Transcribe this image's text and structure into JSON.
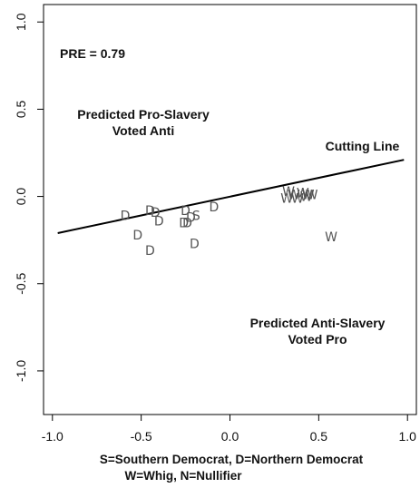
{
  "chart_data": {
    "type": "scatter",
    "xlim": [
      -1.05,
      1.05
    ],
    "ylim": [
      -1.25,
      1.1
    ],
    "x_ticks": [
      {
        "value": -1.0,
        "label": "-1.0"
      },
      {
        "value": -0.5,
        "label": "-0.5"
      },
      {
        "value": 0.0,
        "label": "0.0"
      },
      {
        "value": 0.5,
        "label": "0.5"
      },
      {
        "value": 1.0,
        "label": "1.0"
      }
    ],
    "y_ticks": [
      {
        "value": 1.0,
        "label": "1.0"
      },
      {
        "value": 0.5,
        "label": "0.5"
      },
      {
        "value": 0.0,
        "label": "0.0"
      },
      {
        "value": -0.5,
        "label": "-0.5"
      },
      {
        "value": -1.0,
        "label": "-1.0"
      }
    ],
    "grid": false,
    "xlabel_lines": [
      "S=Southern Democrat, D=Northern Democrat",
      "W=Whig, N=Nullifier"
    ],
    "cutting_line": {
      "label": "Cutting Line",
      "x": [
        -0.97,
        0.98
      ],
      "y": [
        -0.21,
        0.21
      ]
    },
    "annotations": {
      "pre": "PRE =  0.79",
      "pro_slavery": [
        "Predicted Pro-Slavery",
        "Voted Anti"
      ],
      "anti_slavery": [
        "Predicted Anti-Slavery",
        "Voted Pro"
      ]
    },
    "points": [
      {
        "label": "D",
        "x": -0.59,
        "y": -0.11
      },
      {
        "label": "D",
        "x": -0.52,
        "y": -0.22
      },
      {
        "label": "D",
        "x": -0.45,
        "y": -0.08
      },
      {
        "label": "D",
        "x": -0.42,
        "y": -0.09
      },
      {
        "label": "D",
        "x": -0.4,
        "y": -0.14
      },
      {
        "label": "D",
        "x": -0.45,
        "y": -0.31
      },
      {
        "label": "D",
        "x": -0.25,
        "y": -0.08
      },
      {
        "label": "D",
        "x": -0.22,
        "y": -0.12
      },
      {
        "label": "D",
        "x": -0.26,
        "y": -0.15
      },
      {
        "label": "D",
        "x": -0.24,
        "y": -0.15
      },
      {
        "label": "S",
        "x": -0.19,
        "y": -0.11
      },
      {
        "label": "D",
        "x": -0.2,
        "y": -0.27
      },
      {
        "label": "D",
        "x": -0.09,
        "y": -0.06
      },
      {
        "label": "W",
        "x": 0.33,
        "y": 0.03
      },
      {
        "label": "W",
        "x": 0.36,
        "y": 0.01
      },
      {
        "label": "W",
        "x": 0.32,
        "y": -0.01
      },
      {
        "label": "W",
        "x": 0.38,
        "y": -0.01
      },
      {
        "label": "W",
        "x": 0.41,
        "y": 0.02
      },
      {
        "label": "W",
        "x": 0.44,
        "y": 0.01
      },
      {
        "label": "W",
        "x": 0.43,
        "y": 0.0
      },
      {
        "label": "W",
        "x": 0.46,
        "y": 0.01
      },
      {
        "label": "W",
        "x": 0.57,
        "y": -0.23
      }
    ]
  }
}
